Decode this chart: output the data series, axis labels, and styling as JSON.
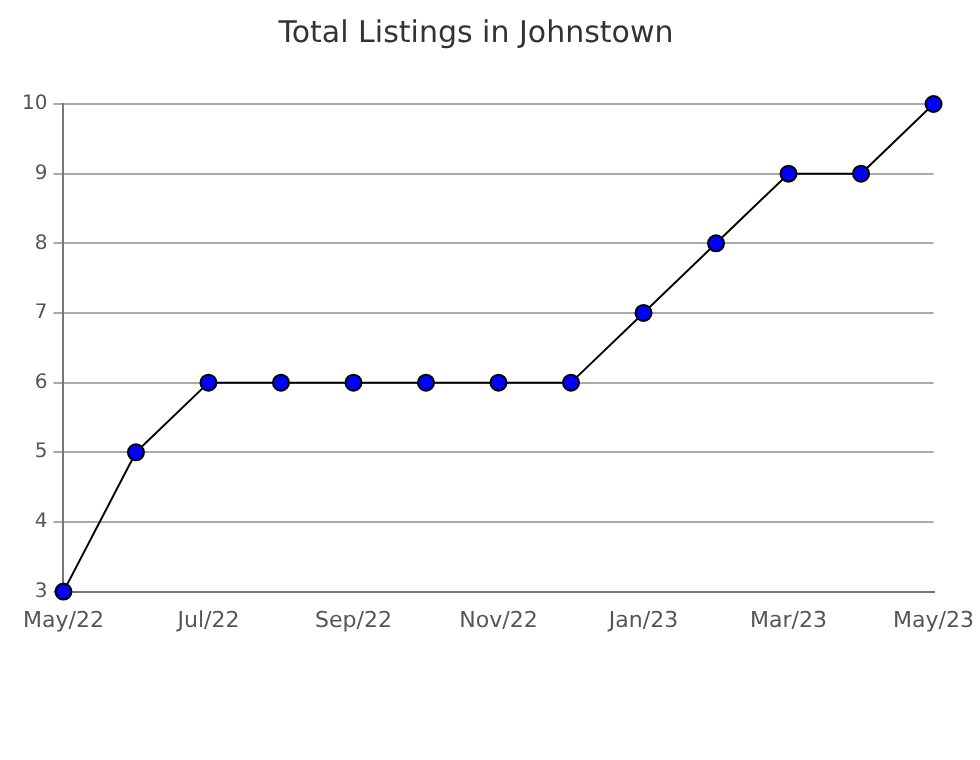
{
  "chart_data": {
    "type": "line",
    "title": "Total Listings in Johnstown",
    "categories": [
      "May/22",
      null,
      "Jul/22",
      null,
      "Sep/22",
      null,
      "Nov/22",
      null,
      "Jan/23",
      null,
      "Mar/23",
      null,
      "May/23"
    ],
    "series": [
      {
        "color": "#000000",
        "colors": [
          "#0000ff",
          "#0000ff",
          "#0000ff",
          "#0000ff",
          "#0000ff",
          "#0000ff",
          "#0000ff",
          "#0000ff",
          "#0000ff",
          "#0000ff",
          "#0000ff",
          "#0000ff",
          "#0000ff"
        ],
        "values": [
          3,
          5,
          6,
          6,
          6,
          6,
          6,
          6,
          7,
          8,
          9,
          9,
          10
        ]
      }
    ],
    "ylim": [
      3,
      10
    ],
    "yticks": [
      3,
      4,
      5,
      6,
      7,
      8,
      9,
      10
    ],
    "grid": "y",
    "legend": false,
    "marker": "circle",
    "line_style": "solid"
  }
}
